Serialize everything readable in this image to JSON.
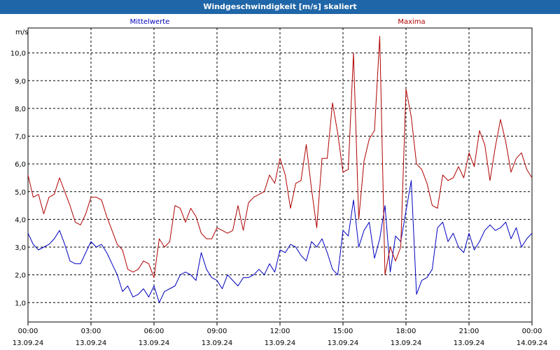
{
  "window": {
    "title": "Windgeschwindigkeit [m/s] skaliert"
  },
  "colors": {
    "titlebar": "#1f66a8",
    "mean": "#0000c0",
    "max": "#b00000",
    "grid": "#000000"
  },
  "chart_data": {
    "type": "line",
    "title": "Windgeschwindigkeit [m/s] skaliert",
    "ylabel": "m/s",
    "ylim": [
      0.3,
      10.9
    ],
    "yticks": [
      "1,0",
      "2,0",
      "3,0",
      "4,0",
      "5,0",
      "6,0",
      "7,0",
      "8,0",
      "9,0",
      "10,0"
    ],
    "xlim_hours": [
      0,
      24
    ],
    "xticks": [
      {
        "time": "00:00",
        "date": "13.09.24"
      },
      {
        "time": "03:00",
        "date": "13.09.24"
      },
      {
        "time": "06:00",
        "date": "13.09.24"
      },
      {
        "time": "09:00",
        "date": "13.09.24"
      },
      {
        "time": "12:00",
        "date": "13.09.24"
      },
      {
        "time": "15:00",
        "date": "13.09.24"
      },
      {
        "time": "18:00",
        "date": "13.09.24"
      },
      {
        "time": "21:00",
        "date": "13.09.24"
      },
      {
        "time": "00:00",
        "date": "14.09.24"
      }
    ],
    "grid": true,
    "series": [
      {
        "name": "Mittelwerte",
        "color": "#0000c0",
        "x_hours": [
          0.0,
          0.25,
          0.5,
          0.75,
          1.0,
          1.25,
          1.5,
          1.75,
          2.0,
          2.25,
          2.5,
          2.75,
          3.0,
          3.25,
          3.5,
          3.75,
          4.0,
          4.25,
          4.5,
          4.75,
          5.0,
          5.25,
          5.5,
          5.75,
          6.0,
          6.25,
          6.5,
          6.75,
          7.0,
          7.25,
          7.5,
          7.75,
          8.0,
          8.25,
          8.5,
          8.75,
          9.0,
          9.25,
          9.5,
          9.75,
          10.0,
          10.25,
          10.5,
          10.75,
          11.0,
          11.25,
          11.5,
          11.75,
          12.0,
          12.25,
          12.5,
          12.75,
          13.0,
          13.25,
          13.5,
          13.75,
          14.0,
          14.25,
          14.5,
          14.75,
          15.0,
          15.25,
          15.5,
          15.75,
          16.0,
          16.25,
          16.5,
          16.75,
          17.0,
          17.25,
          17.5,
          17.75,
          18.0,
          18.25,
          18.5,
          18.75,
          19.0,
          19.25,
          19.5,
          19.75,
          20.0,
          20.25,
          20.5,
          20.75,
          21.0,
          21.25,
          21.5,
          21.75,
          22.0,
          22.25,
          22.5,
          22.75,
          23.0,
          23.25,
          23.5,
          23.75,
          24.0
        ],
        "values": [
          3.5,
          3.1,
          2.9,
          3.0,
          3.1,
          3.3,
          3.6,
          3.1,
          2.5,
          2.4,
          2.4,
          2.8,
          3.2,
          3.0,
          3.1,
          2.8,
          2.4,
          2.0,
          1.4,
          1.6,
          1.2,
          1.3,
          1.5,
          1.2,
          1.6,
          1.0,
          1.4,
          1.5,
          1.6,
          2.0,
          2.1,
          2.0,
          1.8,
          2.8,
          2.2,
          1.9,
          1.8,
          1.5,
          2.0,
          1.8,
          1.6,
          1.9,
          1.9,
          2.0,
          2.2,
          2.0,
          2.4,
          2.1,
          2.9,
          2.8,
          3.1,
          3.0,
          2.7,
          2.5,
          3.2,
          3.0,
          3.3,
          2.8,
          2.2,
          2.0,
          3.6,
          3.4,
          4.7,
          3.0,
          3.6,
          3.9,
          2.6,
          3.3,
          4.5,
          2.1,
          3.4,
          3.2,
          4.3,
          5.4,
          1.3,
          1.8,
          1.9,
          2.2,
          3.7,
          3.9,
          3.2,
          3.5,
          3.0,
          2.8,
          3.5,
          2.9,
          3.2,
          3.6,
          3.8,
          3.6,
          3.7,
          3.9,
          3.3,
          3.7,
          3.0,
          3.3,
          3.5
        ]
      },
      {
        "name": "Maxima",
        "color": "#b00000",
        "x_hours": [
          0.0,
          0.25,
          0.5,
          0.75,
          1.0,
          1.25,
          1.5,
          1.75,
          2.0,
          2.25,
          2.5,
          2.75,
          3.0,
          3.25,
          3.5,
          3.75,
          4.0,
          4.25,
          4.5,
          4.75,
          5.0,
          5.25,
          5.5,
          5.75,
          6.0,
          6.25,
          6.5,
          6.75,
          7.0,
          7.25,
          7.5,
          7.75,
          8.0,
          8.25,
          8.5,
          8.75,
          9.0,
          9.25,
          9.5,
          9.75,
          10.0,
          10.25,
          10.5,
          10.75,
          11.0,
          11.25,
          11.5,
          11.75,
          12.0,
          12.25,
          12.5,
          12.75,
          13.0,
          13.25,
          13.5,
          13.75,
          14.0,
          14.25,
          14.5,
          14.75,
          15.0,
          15.25,
          15.5,
          15.75,
          16.0,
          16.25,
          16.5,
          16.75,
          17.0,
          17.25,
          17.5,
          17.75,
          18.0,
          18.25,
          18.5,
          18.75,
          19.0,
          19.25,
          19.5,
          19.75,
          20.0,
          20.25,
          20.5,
          20.75,
          21.0,
          21.25,
          21.5,
          21.75,
          22.0,
          22.25,
          22.5,
          22.75,
          23.0,
          23.25,
          23.5,
          23.75,
          24.0
        ],
        "values": [
          5.6,
          4.8,
          4.9,
          4.2,
          4.8,
          4.9,
          5.5,
          5.0,
          4.5,
          3.9,
          3.8,
          4.2,
          4.8,
          4.8,
          4.7,
          4.1,
          3.6,
          3.1,
          2.9,
          2.2,
          2.1,
          2.2,
          2.5,
          2.4,
          1.9,
          3.3,
          3.0,
          3.2,
          4.5,
          4.4,
          3.9,
          4.4,
          4.1,
          3.5,
          3.3,
          3.3,
          3.7,
          3.6,
          3.5,
          3.6,
          4.5,
          3.6,
          4.6,
          4.8,
          4.9,
          5.0,
          5.6,
          5.3,
          6.2,
          5.6,
          4.4,
          5.3,
          5.4,
          6.7,
          5.1,
          3.7,
          6.2,
          6.2,
          8.2,
          7.1,
          5.7,
          5.8,
          10.0,
          4.0,
          6.1,
          6.9,
          7.2,
          10.6,
          2.0,
          3.0,
          2.5,
          3.0,
          8.7,
          7.7,
          6.0,
          5.8,
          5.3,
          4.5,
          4.4,
          5.6,
          5.4,
          5.5,
          5.9,
          5.5,
          6.4,
          5.9,
          7.2,
          6.7,
          5.4,
          6.6,
          7.6,
          6.8,
          5.7,
          6.2,
          6.4,
          5.8,
          5.5
        ]
      }
    ]
  }
}
